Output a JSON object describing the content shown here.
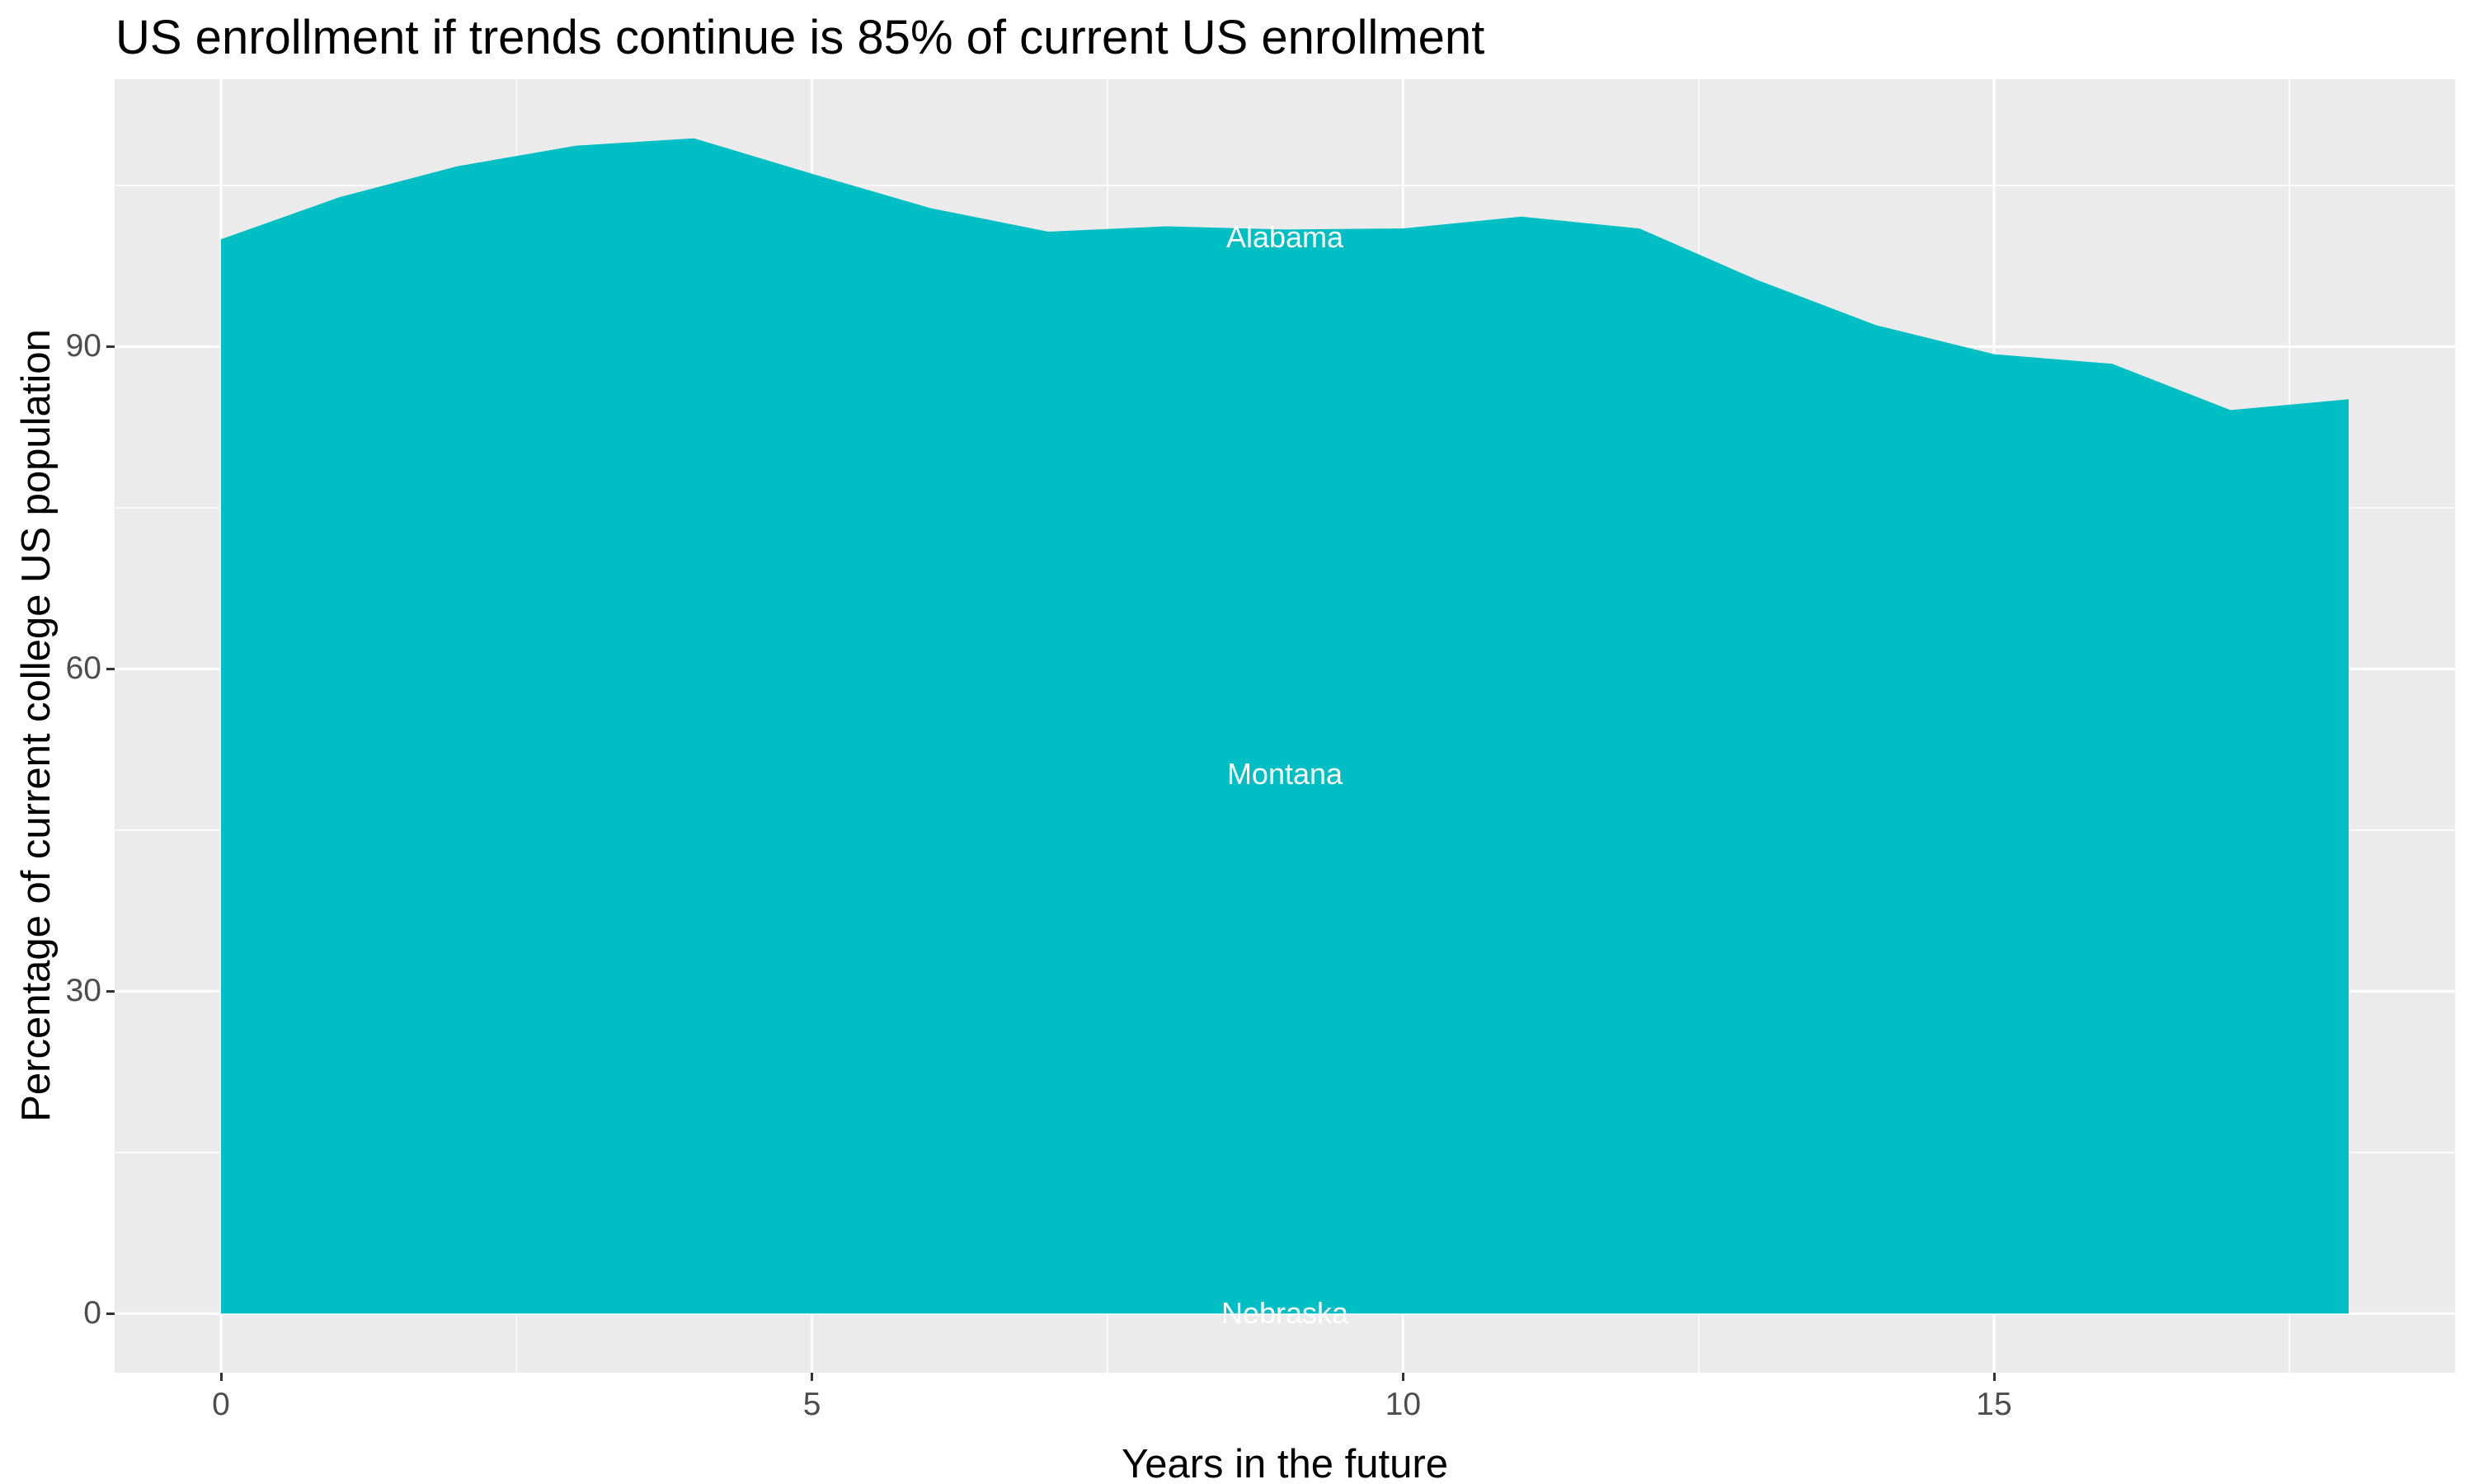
{
  "page": {
    "title": "US enrollment if trends continue is 85% of current US enrollment"
  },
  "chart_data": {
    "type": "area",
    "title": "US enrollment if trends continue is 85% of current US enrollment",
    "xlabel": "Years in the future",
    "ylabel": "Percentage of current college US population",
    "x": [
      0,
      1,
      2,
      3,
      4,
      5,
      6,
      7,
      8,
      9,
      10,
      11,
      12,
      13,
      14,
      15,
      16,
      17,
      18
    ],
    "series": [
      {
        "name": "US enrollment",
        "values": [
          100.0,
          103.9,
          106.8,
          108.7,
          109.4,
          106.1,
          102.9,
          100.7,
          101.2,
          100.9,
          101.0,
          102.1,
          101.0,
          96.2,
          92.0,
          89.3,
          88.4,
          84.1,
          85.1
        ]
      }
    ],
    "x_ticks": [
      0,
      5,
      10,
      15
    ],
    "y_ticks": [
      0,
      30,
      60,
      90
    ],
    "x_minor_gridlines": [
      2.5,
      7.5,
      12.5,
      17.5
    ],
    "y_minor_gridlines": [
      15,
      45,
      75,
      105
    ],
    "xlim": [
      -0.9,
      18.9
    ],
    "ylim": [
      -5.5,
      114.9
    ],
    "grid": true,
    "legend_position": "none",
    "area_labels": [
      {
        "text": "Alabama",
        "x": 9,
        "y": 100.2
      },
      {
        "text": "Montana",
        "x": 9,
        "y": 50.2
      },
      {
        "text": "Nebraska",
        "x": 9,
        "y": 0
      }
    ],
    "colors": {
      "fill": "#00BFC4",
      "panel_bg": "#EBEBEB",
      "gridline": "#FFFFFF",
      "tick_text": "#4D4D4D",
      "tick_mark": "#333333",
      "title_text": "#000000",
      "area_label_text": "#FFFFFF"
    }
  }
}
